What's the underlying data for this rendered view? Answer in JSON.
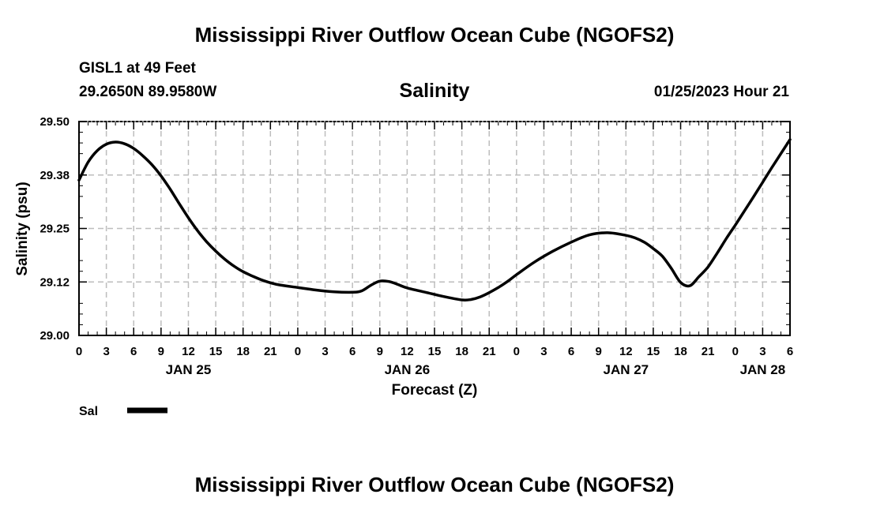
{
  "header": {
    "title": "Mississippi River Outflow Ocean Cube (NGOFS2)",
    "station": "GISL1 at 49 Feet",
    "coords": "29.2650N  89.9580W",
    "datetime": "01/25/2023 Hour 21",
    "footer_title": "Mississippi River Outflow Ocean Cube (NGOFS2)"
  },
  "chart_data": {
    "type": "line",
    "title": "Salinity",
    "xlabel": "Forecast (Z)",
    "ylabel": "Salinity (psu)",
    "ylim": [
      29.0,
      29.5
    ],
    "xlim": [
      0,
      78
    ],
    "grid": true,
    "yticks": [
      29.0,
      29.125,
      29.25,
      29.375,
      29.5
    ],
    "ytick_labels": [
      "29.00",
      "29.12",
      "29.25",
      "29.38",
      "29.50"
    ],
    "xtick_hours": [
      0,
      3,
      6,
      9,
      12,
      15,
      18,
      21,
      24,
      27,
      30,
      33,
      36,
      39,
      42,
      45,
      48,
      51,
      54,
      57,
      60,
      63,
      66,
      69,
      72,
      75,
      78
    ],
    "xtick_labels": [
      "0",
      "3",
      "6",
      "9",
      "12",
      "15",
      "18",
      "21",
      "0",
      "3",
      "6",
      "9",
      "12",
      "15",
      "18",
      "21",
      "0",
      "3",
      "6",
      "9",
      "12",
      "15",
      "18",
      "21",
      "0",
      "3",
      "6"
    ],
    "date_labels": [
      {
        "hour": 12,
        "label": "JAN 25"
      },
      {
        "hour": 36,
        "label": "JAN 26"
      },
      {
        "hour": 60,
        "label": "JAN 27"
      },
      {
        "hour": 75,
        "label": "JAN 28"
      }
    ],
    "legend": {
      "label": "Sal",
      "color": "#000000",
      "placement": "bottom-left"
    },
    "series": [
      {
        "name": "Sal",
        "color": "#000000",
        "x": [
          0,
          1,
          2,
          3,
          4,
          5,
          6,
          7,
          8,
          9,
          10,
          11,
          12,
          13,
          14,
          15,
          16,
          17,
          18,
          19,
          20,
          21,
          22,
          24,
          26,
          28,
          30,
          31,
          32,
          33,
          34,
          35,
          36,
          38,
          40,
          42,
          43,
          44,
          45,
          46,
          47,
          48,
          50,
          52,
          54,
          56,
          58,
          60,
          61,
          62,
          63,
          64,
          65,
          66,
          67,
          68,
          69,
          70,
          71,
          72,
          73,
          74,
          75,
          76,
          77,
          78
        ],
        "values": [
          29.363,
          29.405,
          29.432,
          29.447,
          29.452,
          29.448,
          29.437,
          29.42,
          29.399,
          29.373,
          29.342,
          29.308,
          29.275,
          29.245,
          29.219,
          29.197,
          29.178,
          29.162,
          29.149,
          29.139,
          29.13,
          29.123,
          29.118,
          29.112,
          29.106,
          29.102,
          29.101,
          29.104,
          29.117,
          29.127,
          29.126,
          29.119,
          29.111,
          29.101,
          29.091,
          29.083,
          29.084,
          29.09,
          29.1,
          29.112,
          29.126,
          29.142,
          29.172,
          29.197,
          29.218,
          29.235,
          29.24,
          29.234,
          29.228,
          29.218,
          29.203,
          29.185,
          29.156,
          29.124,
          29.116,
          29.137,
          29.16,
          29.192,
          29.226,
          29.258,
          29.291,
          29.324,
          29.358,
          29.392,
          29.425,
          29.458
        ]
      }
    ]
  }
}
